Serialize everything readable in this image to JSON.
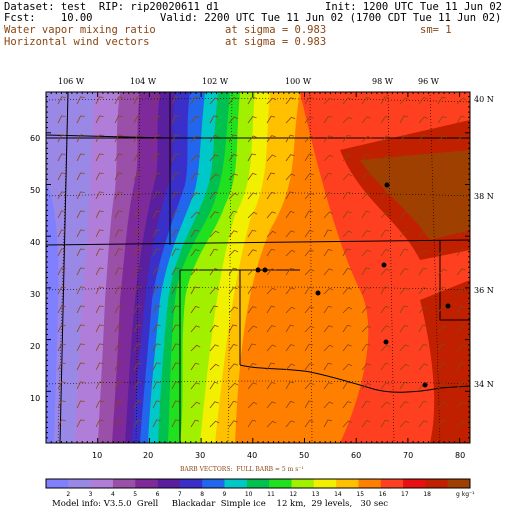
{
  "header": {
    "line1_left": "Dataset: test  RIP: rip20020611 d1",
    "line1_right": "Init: 1200 UTC Tue 11 Jun 02",
    "line2_left": "Fcst:    10.00",
    "line2_right": "Valid: 2200 UTC Tue 11 Jun 02 (1700 CDT Tue 11 Jun 02)",
    "line3_left": "Water vapor mixing ratio",
    "line3_mid": "at sigma = 0.983",
    "line3_right": "sm= 1",
    "line4_left": "Horizontal wind vectors",
    "line4_mid": "at sigma = 0.983"
  },
  "map": {
    "top_lon_labels": [
      "106 W",
      "104 W",
      "102 W",
      "100 W",
      "98 W",
      "96 W"
    ],
    "right_lat_labels": [
      "40 N",
      "38 N",
      "36 N",
      "34 N"
    ],
    "left_grid_labels": [
      "60",
      "50",
      "40",
      "30",
      "20",
      "10"
    ],
    "bottom_grid_labels": [
      "10",
      "20",
      "30",
      "40",
      "50",
      "60",
      "70",
      "80"
    ]
  },
  "barb_caption": "BARB VECTORS:  FULL BARB = 5 m s⁻¹",
  "colorbar": {
    "labels": [
      "2",
      "3",
      "4",
      "5",
      "6",
      "7",
      "8",
      "9",
      "10",
      "11",
      "12",
      "13",
      "14",
      "15",
      "16",
      "17",
      "18"
    ],
    "unit": "g kg⁻¹",
    "colors": [
      "#8080ff",
      "#9a88e6",
      "#b07ed8",
      "#9a4fa8",
      "#7f2a9a",
      "#5a1f9e",
      "#3a2fc8",
      "#2266ee",
      "#00c8c8",
      "#00c050",
      "#20e020",
      "#a0f000",
      "#f0f000",
      "#ffc000",
      "#ff8000",
      "#ff4020",
      "#e81010",
      "#c02000",
      "#a04000"
    ]
  },
  "footer": "Model info: V3.5.0  Grell     Blackadar  Simple ice    12 km,  29 levels,   30 sec"
}
